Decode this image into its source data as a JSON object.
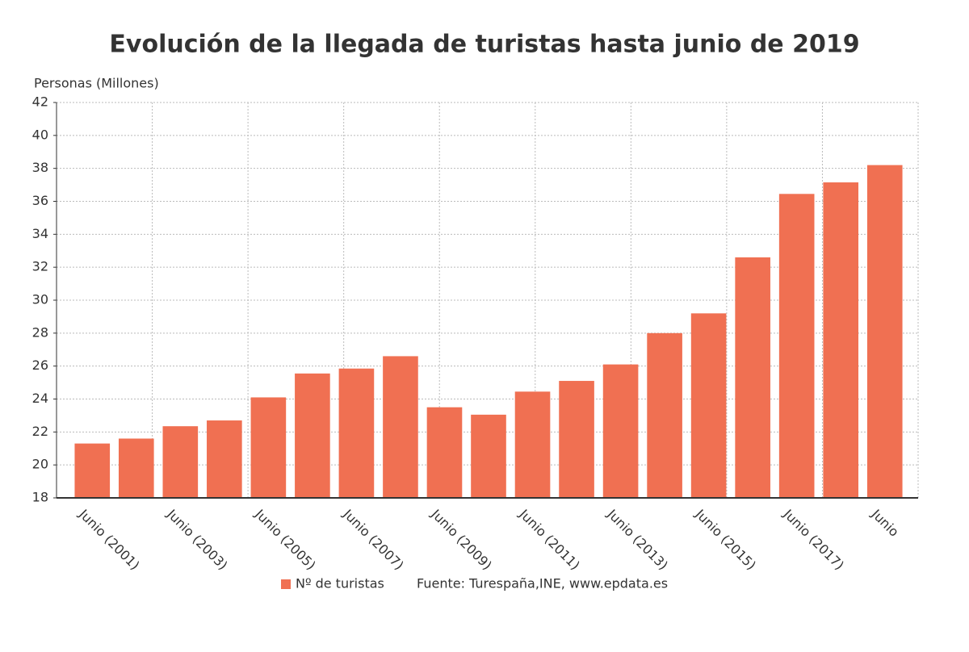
{
  "chart_data": {
    "type": "bar",
    "title": "Evolución de la llegada de turistas hasta junio de 2019",
    "y_axis_label": "Personas (Millones)",
    "source": "Fuente: Turespaña,INE, www.epdata.es",
    "categories": [
      "Junio (2001)",
      null,
      "Junio (2003)",
      null,
      "Junio (2005)",
      null,
      "Junio (2007)",
      null,
      "Junio (2009)",
      null,
      "Junio (2011)",
      null,
      "Junio (2013)",
      null,
      "Junio (2015)",
      null,
      "Junio (2017)",
      null,
      "Junio"
    ],
    "series": [
      {
        "name": "Nº de turistas",
        "color": "#f07052",
        "values": [
          21.3,
          21.6,
          22.35,
          22.7,
          24.1,
          25.55,
          25.85,
          26.6,
          23.5,
          23.05,
          24.45,
          25.1,
          26.1,
          28.0,
          29.2,
          32.6,
          36.45,
          37.15,
          38.2
        ]
      }
    ],
    "ylim": [
      18,
      42
    ],
    "yticks": [
      18,
      20,
      22,
      24,
      26,
      28,
      30,
      32,
      34,
      36,
      38,
      40,
      42
    ],
    "grid": true
  }
}
